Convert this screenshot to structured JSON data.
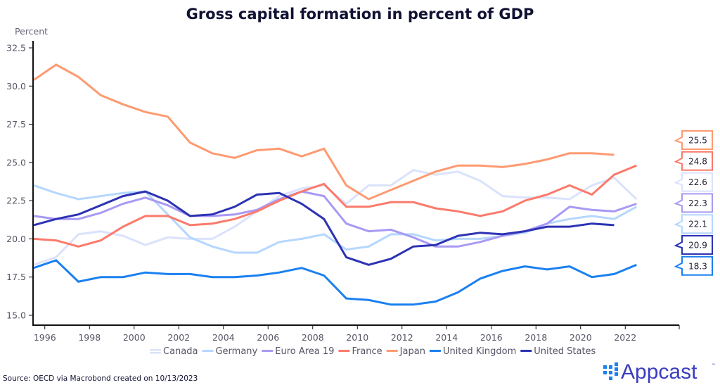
{
  "chart_data": {
    "type": "line",
    "title": "Gross capital formation in percent of GDP",
    "ylabel": "Percent",
    "xlabel": "",
    "ylim": [
      15.0,
      32.5
    ],
    "xlim": [
      1995,
      2023
    ],
    "yticks": [
      "15.0",
      "17.5",
      "20.0",
      "22.5",
      "25.0",
      "27.5",
      "30.0",
      "32.5"
    ],
    "xticks": [
      "1996",
      "1998",
      "2000",
      "2002",
      "2004",
      "2006",
      "2008",
      "2010",
      "2012",
      "2014",
      "2016",
      "2018",
      "2020",
      "2022"
    ],
    "grid": false,
    "legend_position": "bottom",
    "x": [
      1995,
      1996,
      1997,
      1998,
      1999,
      2000,
      2001,
      2002,
      2003,
      2004,
      2005,
      2006,
      2007,
      2008,
      2009,
      2010,
      2011,
      2012,
      2013,
      2014,
      2015,
      2016,
      2017,
      2018,
      2019,
      2020,
      2021,
      2022
    ],
    "series": [
      {
        "name": "Canada",
        "color": "#dbe2fb",
        "last_value_label": "22.6",
        "values": [
          18.3,
          18.8,
          20.3,
          20.5,
          20.2,
          19.6,
          20.1,
          20.0,
          20.0,
          20.8,
          21.8,
          22.8,
          23.3,
          23.5,
          22.3,
          23.5,
          23.5,
          24.5,
          24.2,
          24.4,
          23.8,
          22.8,
          22.7,
          22.7,
          22.6,
          23.5,
          24.0,
          22.6
        ]
      },
      {
        "name": "Germany",
        "color": "#b5d7fe",
        "last_value_label": "22.1",
        "values": [
          23.5,
          23.0,
          22.6,
          22.8,
          23.0,
          23.1,
          21.6,
          20.1,
          19.5,
          19.1,
          19.1,
          19.8,
          20.0,
          20.3,
          19.3,
          19.5,
          20.3,
          20.3,
          19.9,
          20.0,
          20.0,
          20.2,
          20.4,
          21.0,
          21.3,
          21.5,
          21.3,
          22.1
        ]
      },
      {
        "name": "Euro Area 19",
        "color": "#a89af4",
        "last_value_label": "22.3",
        "values": [
          21.5,
          21.3,
          21.3,
          21.7,
          22.3,
          22.7,
          22.2,
          21.5,
          21.5,
          21.6,
          21.9,
          22.6,
          23.1,
          22.8,
          21.0,
          20.5,
          20.6,
          20.1,
          19.5,
          19.5,
          19.8,
          20.2,
          20.5,
          21.0,
          22.1,
          21.9,
          21.8,
          22.3
        ]
      },
      {
        "name": "France",
        "color": "#fb7a6b",
        "last_value_label": "24.8",
        "values": [
          20.0,
          19.9,
          19.5,
          19.9,
          20.8,
          21.5,
          21.5,
          20.9,
          21.0,
          21.3,
          21.8,
          22.5,
          23.1,
          23.6,
          22.1,
          22.1,
          22.4,
          22.4,
          22.0,
          21.8,
          21.5,
          21.8,
          22.5,
          22.9,
          23.5,
          22.9,
          24.2,
          24.8
        ]
      },
      {
        "name": "Japan",
        "color": "#fe9a71",
        "last_value_label": "25.5",
        "values": [
          30.4,
          31.4,
          30.6,
          29.4,
          28.8,
          28.3,
          28.0,
          26.3,
          25.6,
          25.3,
          25.8,
          25.9,
          25.4,
          25.9,
          23.5,
          22.6,
          23.2,
          23.8,
          24.4,
          24.8,
          24.8,
          24.7,
          24.9,
          25.2,
          25.6,
          25.6,
          25.5,
          null
        ]
      },
      {
        "name": "United Kingdom",
        "color": "#1b80f0",
        "last_value_label": "18.3",
        "values": [
          18.1,
          18.6,
          17.2,
          17.5,
          17.5,
          17.8,
          17.7,
          17.7,
          17.5,
          17.5,
          17.6,
          17.8,
          18.1,
          17.6,
          16.1,
          16.0,
          15.7,
          15.7,
          15.9,
          16.5,
          17.4,
          17.9,
          18.2,
          18.0,
          18.2,
          17.5,
          17.7,
          18.3
        ]
      },
      {
        "name": "United States",
        "color": "#2d33b3",
        "last_value_label": "20.9",
        "values": [
          20.9,
          21.3,
          21.6,
          22.2,
          22.8,
          23.1,
          22.5,
          21.5,
          21.6,
          22.1,
          22.9,
          23.0,
          22.3,
          21.3,
          18.8,
          18.3,
          18.7,
          19.5,
          19.6,
          20.2,
          20.4,
          20.3,
          20.5,
          20.8,
          20.8,
          21.0,
          20.9,
          null
        ]
      }
    ],
    "callout_order": [
      "Japan",
      "France",
      "Canada",
      "Euro Area 19",
      "Germany",
      "United States",
      "United Kingdom"
    ]
  },
  "footer": {
    "source": "Source: OECD via Macrobond created on 10/13/2023",
    "logo_text": "Appcast",
    "logo_tm": "™"
  }
}
